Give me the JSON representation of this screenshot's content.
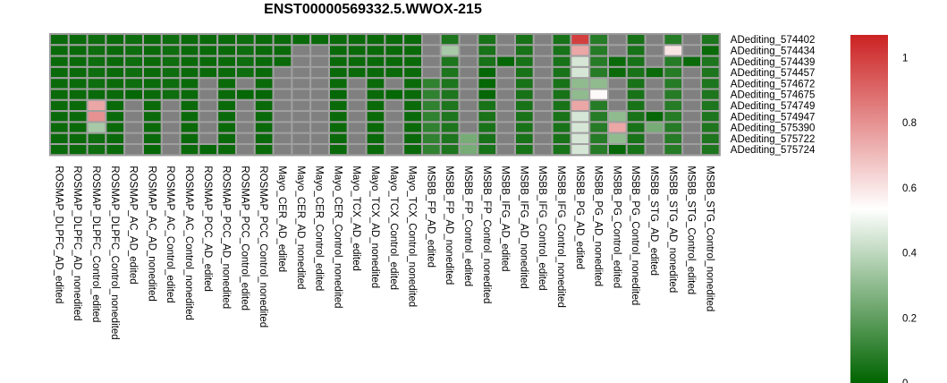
{
  "chart_data": {
    "type": "heatmap",
    "title": "ENST00000569332.5.WWOX-215",
    "rows": [
      "ADediting_574402",
      "ADediting_574434",
      "ADediting_574439",
      "ADediting_574457",
      "ADediting_574672",
      "ADediting_574675",
      "ADediting_574749",
      "ADediting_574947",
      "ADediting_575390",
      "ADediting_575722",
      "ADediting_575724"
    ],
    "columns": [
      "ROSMAP_DLPFC_AD_edited",
      "ROSMAP_DLPFC_AD_nonedited",
      "ROSMAP_DLPFC_Control_edited",
      "ROSMAP_DLPFC_Control_nonedited",
      "ROSMAP_AC_AD_edited",
      "ROSMAP_AC_AD_nonedited",
      "ROSMAP_AC_Control_edited",
      "ROSMAP_AC_Control_nonedited",
      "ROSMAP_PCC_AD_edited",
      "ROSMAP_PCC_AD_nonedited",
      "ROSMAP_PCC_Control_edited",
      "ROSMAP_PCC_Control_nonedited",
      "Mayo_CER_AD_edited",
      "Mayo_CER_AD_nonedited",
      "Mayo_CER_Control_edited",
      "Mayo_CER_Control_nonedited",
      "Mayo_TCX_AD_edited",
      "Mayo_TCX_AD_nonedited",
      "Mayo_TCX_Control_edited",
      "Mayo_TCX_Control_nonedited",
      "MSBB_FP_AD_edited",
      "MSBB_FP_AD_nonedited",
      "MSBB_FP_Control_edited",
      "MSBB_FP_Control_nonedited",
      "MSBB_IFG_AD_edited",
      "MSBB_IFG_AD_nonedited",
      "MSBB_IFG_Control_edited",
      "MSBB_IFG_Control_nonedited",
      "MSBB_PG_AD_edited",
      "MSBB_PG_AD_nonedited",
      "MSBB_PG_Control_edited",
      "MSBB_PG_Control_nonedited",
      "MSBB_STG_AD_edited",
      "MSBB_STG_AD_nonedited",
      "MSBB_STG_Control_edited",
      "MSBB_STG_Control_nonedited"
    ],
    "values": [
      [
        0.02,
        0.02,
        0.03,
        0.02,
        0.03,
        0.02,
        0.03,
        0.02,
        0.02,
        0.02,
        0.03,
        0.02,
        0.02,
        0.02,
        0.02,
        0.02,
        0.02,
        0.02,
        0.02,
        0.02,
        null,
        0.06,
        null,
        0.05,
        null,
        0.05,
        null,
        0.05,
        1.0,
        0.08,
        null,
        0.05,
        null,
        0.08,
        null,
        0.06
      ],
      [
        0.02,
        0.02,
        0.03,
        0.02,
        0.03,
        0.02,
        0.03,
        0.02,
        0.02,
        0.02,
        0.03,
        0.02,
        0.02,
        null,
        null,
        0.02,
        0.02,
        0.02,
        0.02,
        0.02,
        null,
        0.35,
        null,
        0.05,
        null,
        0.05,
        null,
        0.05,
        0.75,
        0.08,
        null,
        0.05,
        null,
        0.6,
        null,
        0.02
      ],
      [
        0.02,
        0.02,
        0.03,
        0.02,
        0.03,
        0.02,
        0.03,
        0.02,
        0.02,
        0.02,
        0.03,
        0.02,
        0.02,
        null,
        null,
        0.02,
        0.02,
        0.02,
        0.02,
        0.02,
        null,
        0.06,
        null,
        0.05,
        0.01,
        0.05,
        null,
        0.05,
        0.45,
        0.08,
        0.02,
        0.05,
        null,
        0.08,
        0.02,
        0.06
      ],
      [
        0.02,
        0.02,
        0.03,
        0.02,
        0.03,
        0.02,
        0.03,
        0.02,
        0.02,
        0.02,
        0.03,
        0.02,
        null,
        null,
        null,
        0.02,
        0.02,
        0.02,
        0.02,
        0.02,
        null,
        0.06,
        null,
        0.01,
        null,
        0.05,
        null,
        0.05,
        0.45,
        0.08,
        0.02,
        0.05,
        0.02,
        0.08,
        null,
        0.06
      ],
      [
        0.02,
        0.02,
        0.03,
        0.02,
        0.03,
        0.02,
        0.03,
        0.02,
        null,
        0.02,
        null,
        0.02,
        null,
        null,
        null,
        0.02,
        null,
        0.02,
        null,
        0.02,
        0.1,
        0.06,
        null,
        0.01,
        null,
        0.05,
        null,
        0.05,
        0.3,
        0.3,
        null,
        0.05,
        null,
        0.08,
        null,
        0.06
      ],
      [
        0.02,
        0.02,
        0.02,
        0.02,
        0.01,
        0.02,
        0.03,
        0.02,
        null,
        0.02,
        0.01,
        0.01,
        null,
        null,
        null,
        0.01,
        null,
        0.02,
        0.01,
        0.02,
        0.1,
        0.06,
        null,
        0.01,
        null,
        0.05,
        null,
        0.05,
        0.3,
        0.55,
        null,
        0.05,
        null,
        0.08,
        null,
        0.06
      ],
      [
        0.02,
        0.02,
        0.75,
        0.02,
        null,
        0.02,
        null,
        0.02,
        null,
        0.02,
        null,
        0.02,
        null,
        null,
        null,
        0.02,
        null,
        0.02,
        null,
        0.02,
        0.1,
        0.06,
        null,
        0.05,
        null,
        0.05,
        null,
        0.05,
        0.75,
        0.08,
        null,
        0.05,
        null,
        0.08,
        null,
        0.06
      ],
      [
        0.02,
        0.02,
        0.8,
        0.02,
        null,
        0.02,
        null,
        0.02,
        null,
        0.02,
        null,
        0.02,
        null,
        null,
        null,
        0.02,
        null,
        0.02,
        null,
        0.02,
        0.1,
        0.06,
        null,
        0.05,
        null,
        0.05,
        null,
        0.05,
        0.45,
        0.08,
        0.3,
        0.05,
        0.01,
        0.08,
        null,
        0.06
      ],
      [
        0.02,
        0.02,
        0.35,
        0.02,
        null,
        0.02,
        null,
        0.02,
        null,
        0.02,
        null,
        0.02,
        null,
        null,
        null,
        0.02,
        null,
        0.02,
        null,
        0.02,
        0.1,
        0.06,
        null,
        0.05,
        null,
        0.05,
        null,
        0.05,
        0.45,
        0.08,
        0.75,
        0.05,
        0.25,
        0.08,
        null,
        0.06
      ],
      [
        0.02,
        0.02,
        0.03,
        0.02,
        null,
        0.02,
        null,
        0.02,
        null,
        0.02,
        null,
        0.02,
        null,
        null,
        null,
        0.02,
        null,
        0.02,
        null,
        0.02,
        0.1,
        0.06,
        0.25,
        0.05,
        null,
        0.05,
        null,
        0.05,
        0.45,
        0.08,
        0.3,
        0.05,
        null,
        0.08,
        null,
        0.06
      ],
      [
        0.02,
        0.02,
        0.03,
        0.02,
        null,
        0.01,
        null,
        0.02,
        0.01,
        0.02,
        null,
        0.02,
        null,
        null,
        null,
        0.02,
        null,
        0.02,
        null,
        0.02,
        0.1,
        0.06,
        0.25,
        0.05,
        null,
        0.05,
        null,
        0.05,
        0.45,
        0.08,
        0.01,
        0.05,
        null,
        0.08,
        null,
        0.06
      ]
    ],
    "missing_color": "#808080",
    "colorscale": {
      "min": 0,
      "max": 1.07,
      "ticks": [
        0,
        0.2,
        0.4,
        0.6,
        0.8,
        1
      ],
      "tick_labels": [
        "0",
        "0.2",
        "0.4",
        "0.6",
        "0.8",
        "1"
      ],
      "low_color": "#006400",
      "mid_color": "#ffffff",
      "high_color": "#cc2222"
    }
  }
}
